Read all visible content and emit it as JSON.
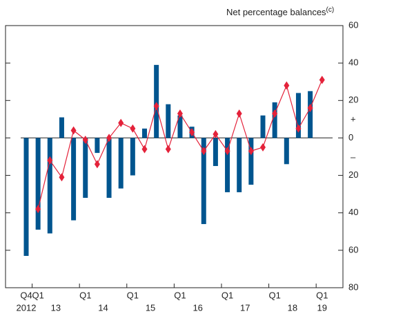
{
  "chart_data": {
    "type": "bar_line",
    "y_axis_label": "Net percentage balances",
    "y_axis_label_note": "(c)",
    "categories": [
      "Q4",
      "Q1",
      null,
      null,
      null,
      "Q1",
      null,
      null,
      null,
      "Q1",
      null,
      null,
      null,
      "Q1",
      null,
      null,
      null,
      "Q1",
      null,
      null,
      null,
      "Q1",
      null,
      null,
      null,
      "Q1"
    ],
    "years": [
      "2012",
      "13",
      "14",
      "15",
      "16",
      "17",
      "18",
      "19"
    ],
    "series": [
      {
        "type": "bar",
        "color": "#00558f",
        "values": [
          -63,
          -49,
          -51,
          11,
          -44,
          -32,
          -8,
          -32,
          -27,
          -20,
          5,
          39,
          18,
          12,
          6,
          -46,
          -15,
          -29,
          -29,
          -25,
          12,
          19,
          -14,
          24,
          25,
          null
        ]
      },
      {
        "type": "line",
        "color": "#e4223a",
        "values": [
          null,
          -38,
          -12,
          -21,
          4,
          -1,
          -14,
          0,
          8,
          5,
          -6,
          17,
          -6,
          13,
          3,
          -7,
          2,
          -7,
          13,
          -7,
          -5,
          13,
          28,
          5,
          16,
          31
        ]
      }
    ],
    "ylim": [
      -80,
      60
    ],
    "yticks": [
      {
        "value": -80,
        "label": "80"
      },
      {
        "value": -60,
        "label": "60"
      },
      {
        "value": -40,
        "label": "40"
      },
      {
        "value": -20,
        "label": "20"
      },
      0,
      20,
      40,
      60
    ],
    "positive_sign": "+",
    "negative_sign": "–"
  }
}
